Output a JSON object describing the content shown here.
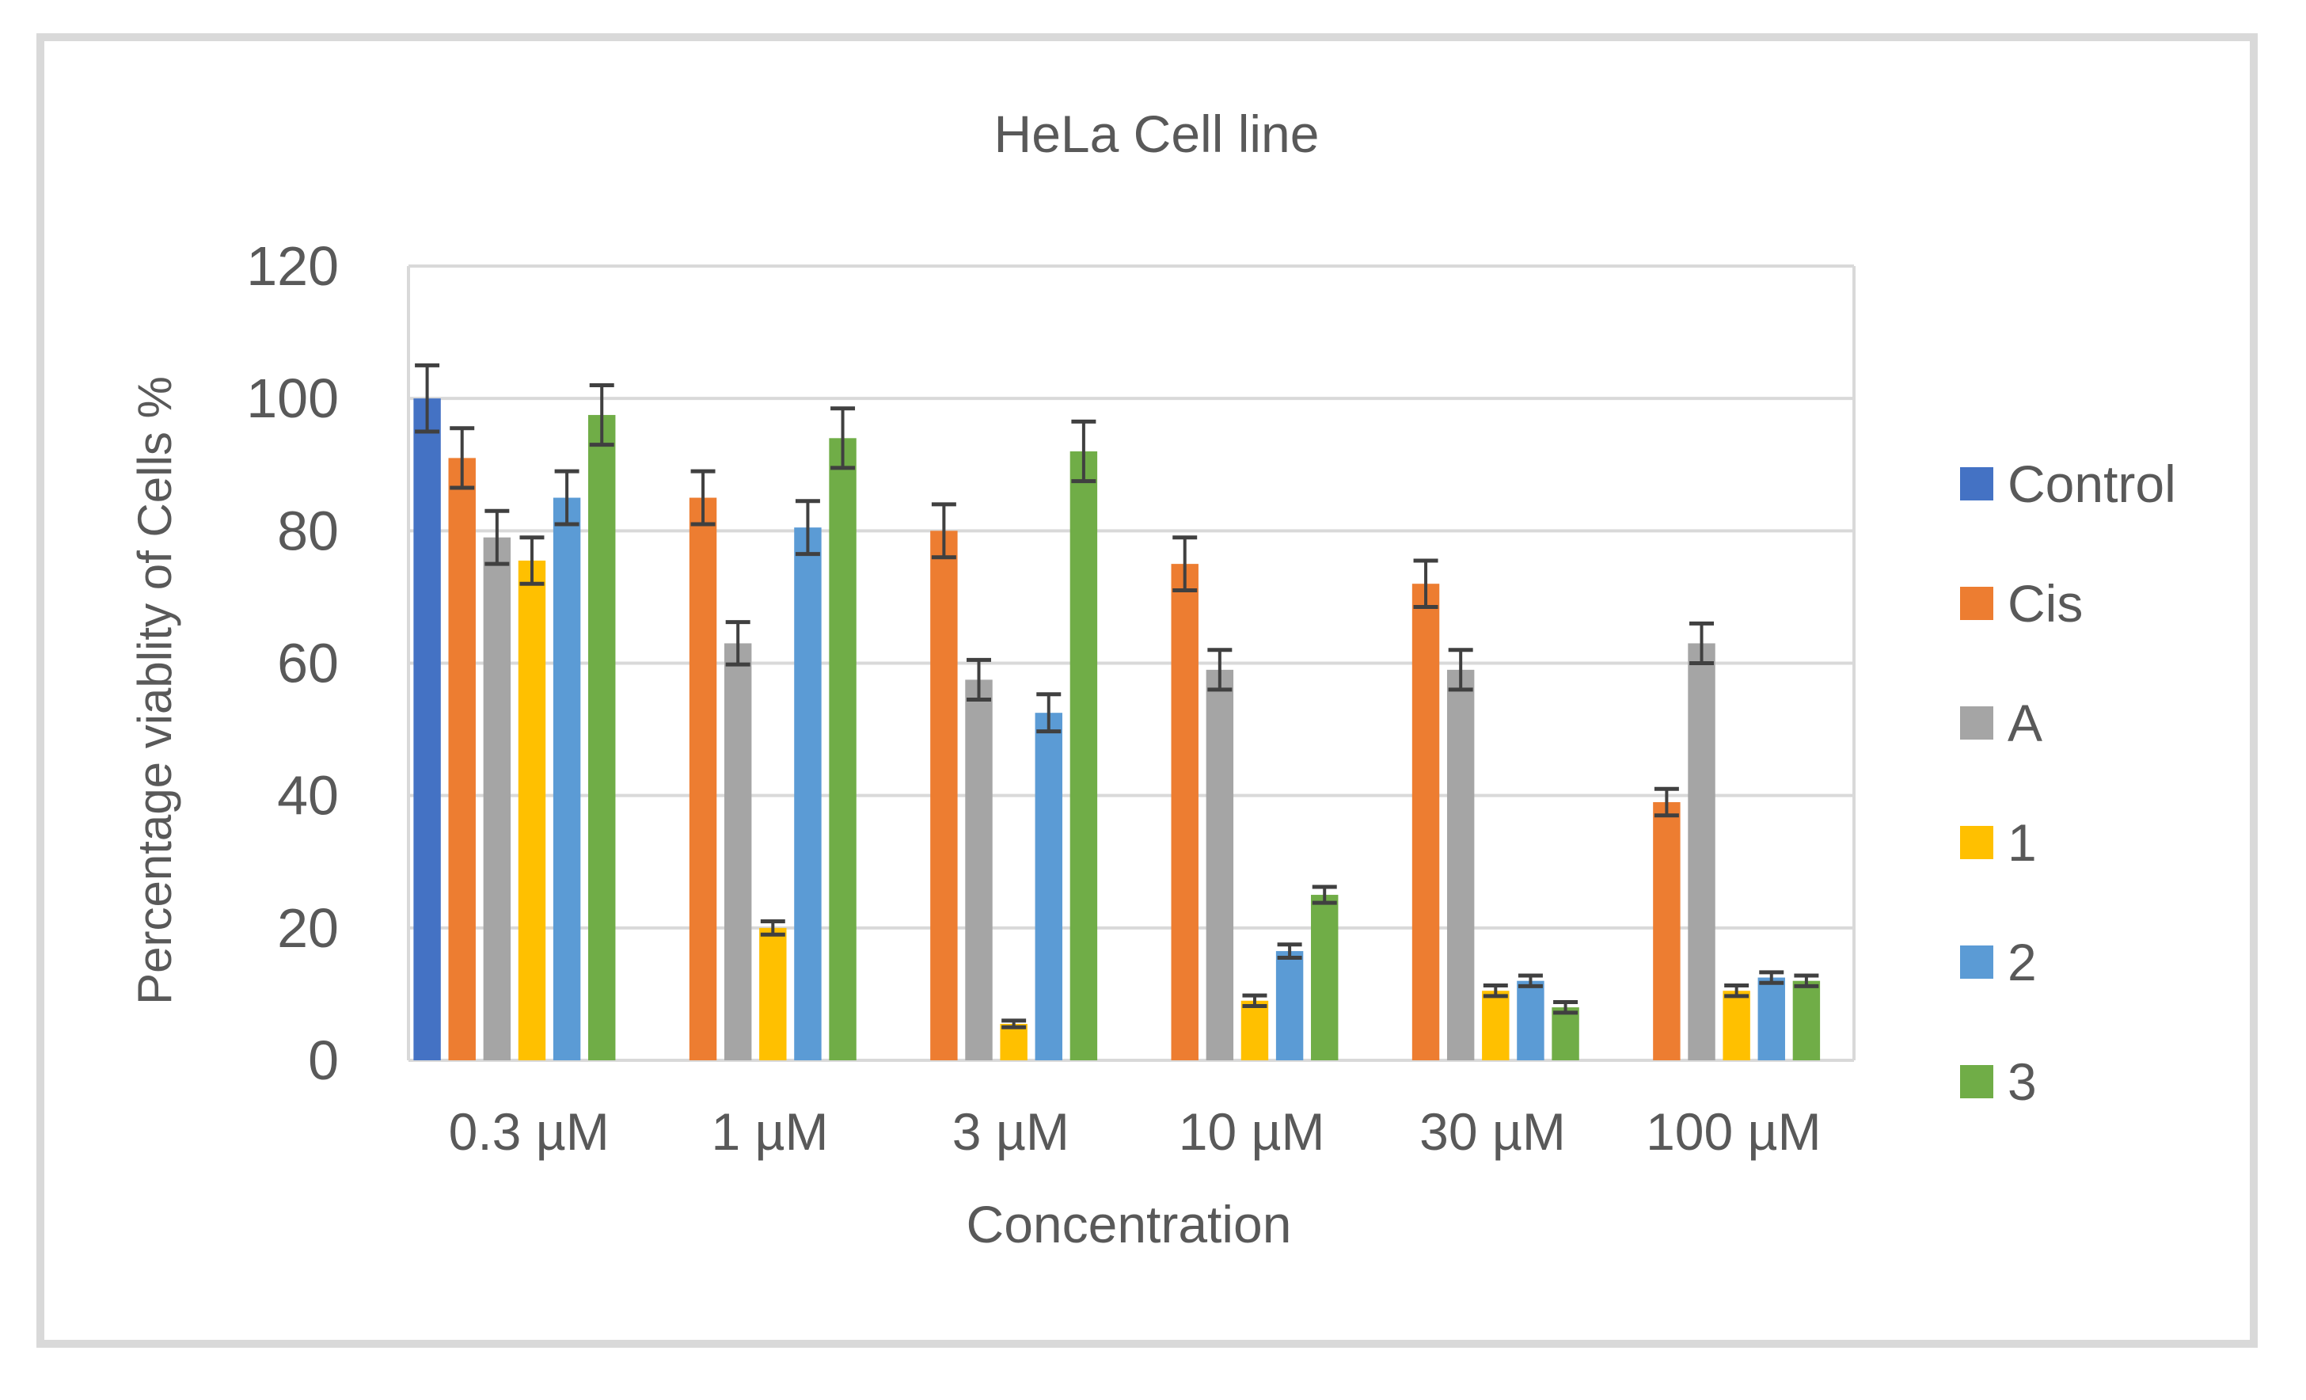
{
  "chart_data": {
    "type": "bar",
    "title": "HeLa Cell line",
    "xlabel": "Concentration",
    "ylabel": "Percentage viablity of Cells %",
    "ylim": [
      0,
      120
    ],
    "yticks": [
      0,
      20,
      40,
      60,
      80,
      100,
      120
    ],
    "grid": true,
    "legend_position": "right",
    "categories": [
      "0.3 µM",
      "1 µM",
      "3 µM",
      "10 µM",
      "30 µM",
      "100 µM"
    ],
    "series": [
      {
        "name": "Control",
        "color": "#4472c4",
        "values": [
          100,
          null,
          null,
          null,
          null,
          null
        ],
        "errors": [
          5,
          null,
          null,
          null,
          null,
          null
        ]
      },
      {
        "name": "Cis",
        "color": "#ed7d31",
        "values": [
          91,
          85,
          80,
          75,
          72,
          39
        ],
        "errors": [
          4.5,
          4,
          4,
          4,
          3.5,
          2
        ]
      },
      {
        "name": "A",
        "color": "#a5a5a5",
        "values": [
          79,
          63,
          57.5,
          59,
          59,
          63
        ],
        "errors": [
          4,
          3.2,
          3,
          3,
          3,
          3
        ]
      },
      {
        "name": "1",
        "color": "#ffc000",
        "values": [
          75.5,
          20,
          5.5,
          9,
          10.5,
          10.5
        ],
        "errors": [
          3.5,
          1,
          0.5,
          0.8,
          0.8,
          0.8
        ]
      },
      {
        "name": "2",
        "color": "#5b9bd5",
        "values": [
          85,
          80.5,
          52.5,
          16.5,
          12,
          12.5
        ],
        "errors": [
          4,
          4,
          2.8,
          1,
          0.8,
          0.8
        ]
      },
      {
        "name": "3",
        "color": "#70ad47",
        "values": [
          97.5,
          94,
          92,
          25,
          8,
          12
        ],
        "errors": [
          4.5,
          4.5,
          4.5,
          1.2,
          0.8,
          0.8
        ]
      }
    ]
  },
  "colors": {
    "grid": "#d9d9d9",
    "text": "#595959",
    "errorbar": "#404040",
    "frame": "#d9d9d9"
  }
}
